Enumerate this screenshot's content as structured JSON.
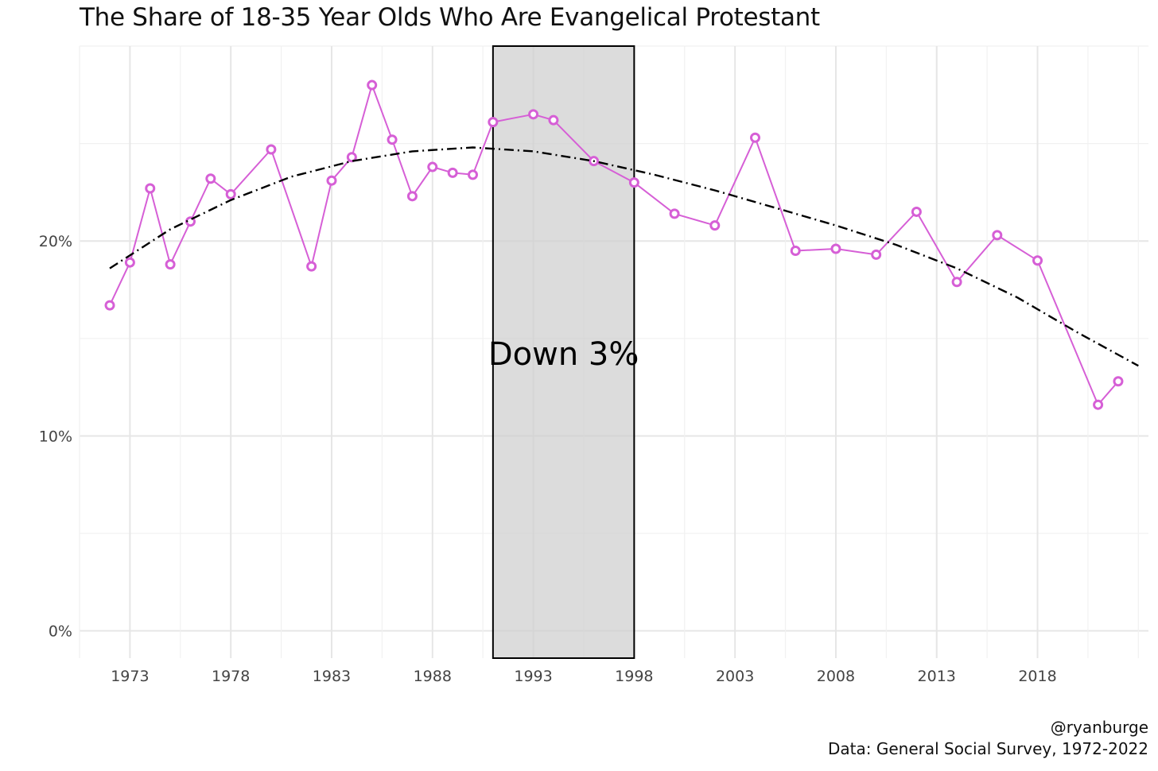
{
  "chart_data": {
    "type": "line",
    "title": "The Share of 18-35 Year Olds Who Are Evangelical Protestant",
    "xlabel": "",
    "ylabel": "",
    "xlim": [
      1970.5,
      2023.5
    ],
    "ylim": [
      -1.4,
      30
    ],
    "x_ticks": [
      1973,
      1978,
      1983,
      1988,
      1993,
      1998,
      2003,
      2008,
      2013,
      2018
    ],
    "x_tick_labels": [
      "1973",
      "1978",
      "1983",
      "1988",
      "1993",
      "1998",
      "2003",
      "2008",
      "2013",
      "2018"
    ],
    "y_ticks": [
      0,
      10,
      20
    ],
    "y_tick_labels": [
      "0%",
      "10%",
      "20%"
    ],
    "grid": true,
    "legend": "none",
    "highlight_region": {
      "x_start": 1991,
      "x_end": 1998,
      "label": "Down 3%"
    },
    "series": [
      {
        "color": "#d65fd6",
        "x": [
          1972,
          1973,
          1974,
          1975,
          1976,
          1977,
          1978,
          1980,
          1982,
          1983,
          1984,
          1985,
          1986,
          1987,
          1988,
          1989,
          1990,
          1991,
          1993,
          1994,
          1996,
          1998,
          2000,
          2002,
          2004,
          2006,
          2008,
          2010,
          2012,
          2014,
          2016,
          2018,
          2021,
          2022
        ],
        "y": [
          16.7,
          18.9,
          22.7,
          18.8,
          21.0,
          23.2,
          22.4,
          24.7,
          18.7,
          23.1,
          24.3,
          28.0,
          25.2,
          22.3,
          23.8,
          23.5,
          23.4,
          26.1,
          26.5,
          26.2,
          24.1,
          23.0,
          21.4,
          20.8,
          25.3,
          19.5,
          19.6,
          19.3,
          21.5,
          17.9,
          20.3,
          19.0,
          11.6,
          12.8
        ]
      },
      {
        "style": "dashdot",
        "color": "#000000",
        "x": [
          1972,
          1975,
          1978,
          1981,
          1984,
          1987,
          1990,
          1993,
          1996,
          1999,
          2002,
          2005,
          2008,
          2011,
          2014,
          2017,
          2020,
          2023
        ],
        "y": [
          18.6,
          20.6,
          22.1,
          23.3,
          24.1,
          24.6,
          24.8,
          24.6,
          24.1,
          23.4,
          22.6,
          21.7,
          20.8,
          19.8,
          18.6,
          17.1,
          15.3,
          13.6
        ]
      }
    ]
  },
  "caption": {
    "handle": "@ryanburge",
    "source": "Data: General Social Survey, 1972-2022"
  }
}
